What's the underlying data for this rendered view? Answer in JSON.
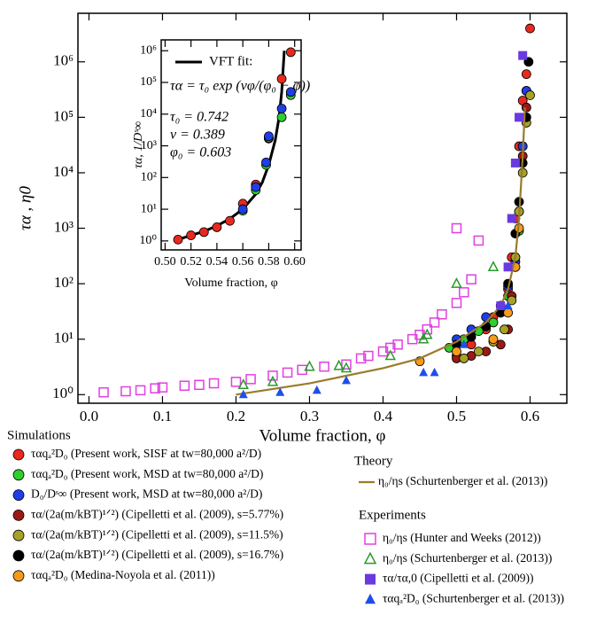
{
  "chart_data": [
    {
      "type": "scatter",
      "xlabel": "Volume fraction, φ",
      "ylabel": "τα , η0",
      "xlim": [
        -0.015,
        0.65
      ],
      "ylim": [
        0.7,
        7500000
      ],
      "log_y": true,
      "xticks": [
        {
          "value": 0,
          "label": "0.0"
        },
        0.1,
        0.2,
        0.3,
        0.4,
        0.5,
        0.6
      ],
      "yticks": [
        {
          "value": 1,
          "label": "10⁰"
        },
        {
          "value": 10,
          "label": "10¹"
        },
        {
          "value": 100,
          "label": "10²"
        },
        {
          "value": 1000,
          "label": "10³"
        },
        {
          "value": 10000,
          "label": "10⁴"
        },
        {
          "value": 100000,
          "label": "10⁵"
        },
        {
          "value": 1000000,
          "label": "10⁶"
        }
      ],
      "groups": [
        {
          "title": "Simulations",
          "series": [
            {
              "name": "ταqₐ²D₀ (Present work, SISF at tw=80,000 a²/D)",
              "color": "#e8291e",
              "marker": "circle",
              "x": [
                0.5,
                0.52,
                0.54,
                0.55,
                0.56,
                0.57,
                0.575,
                0.58,
                0.585,
                0.59,
                0.595,
                0.6
              ],
              "values": [
                5,
                8,
                15,
                25,
                40,
                80,
                300,
                1500,
                30000,
                200000,
                600000,
                4000000
              ]
            },
            {
              "name": "ταqₐ²D₀ (Present work, MSD at tw=80,000 a²/D)",
              "color": "#2fcf2f",
              "marker": "circle",
              "x": [
                0.49,
                0.51,
                0.53,
                0.55,
                0.56,
                0.57,
                0.58,
                0.585,
                0.59,
                0.595
              ],
              "values": [
                7,
                10,
                14,
                20,
                30,
                60,
                200,
                900,
                30000,
                300000
              ]
            },
            {
              "name": "D₀/Dˢ∞ (Present work, MSD at tw=80,000 a²/D)",
              "color": "#1f3ee8",
              "marker": "circle",
              "x": [
                0.5,
                0.52,
                0.54,
                0.56,
                0.57,
                0.58,
                0.59,
                0.595
              ],
              "values": [
                10,
                15,
                25,
                40,
                90,
                250,
                30000,
                300000
              ]
            },
            {
              "name": "τα/(2a(m/kBT)¹ᐟ²) (Cipelletti et al. (2009), s=5.77%)",
              "color": "#9b1a14",
              "marker": "circle",
              "x": [
                0.5,
                0.52,
                0.54,
                0.56,
                0.57,
                0.575,
                0.58,
                0.585,
                0.59,
                0.595
              ],
              "values": [
                4.5,
                5,
                6,
                8,
                15,
                60,
                300,
                2000,
                20000,
                150000
              ]
            },
            {
              "name": "τα/(2a(m/kBT)¹ᐟ²) (Cipelletti et al. (2009), s=11.5%)",
              "color": "#a7a128",
              "marker": "circle",
              "x": [
                0.51,
                0.53,
                0.55,
                0.565,
                0.575,
                0.58,
                0.585,
                0.59,
                0.595,
                0.6
              ],
              "values": [
                4.5,
                6,
                9,
                15,
                50,
                300,
                2000,
                10000,
                80000,
                250000
              ]
            },
            {
              "name": "τα/(2a(m/kBT)¹ᐟ²) (Cipelletti et al. (2009), s=16.7%)",
              "color": "#000000",
              "marker": "circle",
              "x": [
                0.5,
                0.52,
                0.54,
                0.56,
                0.57,
                0.58,
                0.585,
                0.59,
                0.595,
                0.598
              ],
              "values": [
                8,
                11,
                17,
                30,
                100,
                800,
                3000,
                15000,
                100000,
                1000000
              ]
            },
            {
              "name": "ταqₐ²D₀ (Medina-Noyola et al. (2011))",
              "color": "#f59a1a",
              "marker": "circle",
              "x": [
                0.45,
                0.5,
                0.55,
                0.57,
                0.58,
                0.585
              ],
              "values": [
                4,
                6,
                10,
                30,
                200,
                1000
              ]
            }
          ]
        },
        {
          "title": "Theory",
          "series": [
            {
              "name": "η₀/ηs (Schurtenberger et al. (2013))",
              "color": "#9a7b2a",
              "marker": "line",
              "x": [
                0.2,
                0.3,
                0.4,
                0.45,
                0.5,
                0.54,
                0.56,
                0.57,
                0.58,
                0.585,
                0.59,
                0.593
              ],
              "values": [
                1,
                1.6,
                3,
                4.5,
                9,
                20,
                40,
                80,
                300,
                1500,
                20000,
                150000
              ]
            }
          ]
        },
        {
          "title": "Experiments",
          "series": [
            {
              "name": "η₀/ηs (Hunter and Weeks (2012))",
              "color": "#e040e0",
              "marker": "square-open",
              "x": [
                0.02,
                0.05,
                0.07,
                0.09,
                0.1,
                0.13,
                0.15,
                0.17,
                0.2,
                0.22,
                0.25,
                0.27,
                0.29,
                0.32,
                0.35,
                0.37,
                0.38,
                0.4,
                0.41,
                0.42,
                0.44,
                0.45,
                0.46,
                0.47,
                0.48,
                0.5,
                0.51,
                0.52,
                0.5,
                0.53
              ],
              "values": [
                1.1,
                1.15,
                1.2,
                1.3,
                1.35,
                1.45,
                1.5,
                1.6,
                1.7,
                1.9,
                2.2,
                2.5,
                2.8,
                3.2,
                3.5,
                4.5,
                5,
                6,
                7,
                8,
                10,
                12,
                15,
                20,
                28,
                45,
                70,
                120,
                1000,
                600
              ]
            },
            {
              "name": "η₀/ηs (Schurtenberger et al. (2013))",
              "color": "#2a9a2a",
              "marker": "triangle-open",
              "x": [
                0.21,
                0.25,
                0.3,
                0.34,
                0.35,
                0.41,
                0.455,
                0.46,
                0.5,
                0.55
              ],
              "values": [
                1.5,
                1.7,
                3.2,
                3.3,
                3,
                5,
                10,
                12,
                100,
                200
              ]
            },
            {
              "name": "τα/τα,0 (Cipelletti et al. (2009))",
              "color": "#6a3ae0",
              "marker": "square",
              "x": [
                0.56,
                0.57,
                0.575,
                0.58,
                0.585,
                0.59
              ],
              "values": [
                40,
                200,
                1500,
                15000,
                100000,
                1300000
              ]
            },
            {
              "name": "ταqₐ²D₀ (Schurtenberger et al. (2013))",
              "color": "#1f4ee8",
              "marker": "triangle",
              "x": [
                0.21,
                0.26,
                0.31,
                0.35,
                0.455,
                0.47,
                0.51,
                0.57
              ],
              "values": [
                1,
                1.1,
                1.2,
                1.8,
                2.5,
                2.5,
                8,
                40
              ]
            }
          ]
        }
      ]
    },
    {
      "type": "scatter",
      "xlabel": "Volume fraction, φ",
      "ylabel": "τα, 1/Dˢ∞",
      "xlim": [
        0.497,
        0.605
      ],
      "ylim": [
        0.52,
        2200000
      ],
      "log_y": true,
      "xticks": [
        {
          "value": 0.5,
          "label": "0.50"
        },
        0.52,
        0.54,
        0.56,
        0.58,
        {
          "value": 0.6,
          "label": "0.60"
        }
      ],
      "yticks": [
        {
          "value": 1,
          "label": "10⁰"
        },
        {
          "value": 10,
          "label": "10¹"
        },
        {
          "value": 100,
          "label": "10²"
        },
        {
          "value": 1000,
          "label": "10³"
        },
        {
          "value": 10000,
          "label": "10⁴"
        },
        {
          "value": 100000,
          "label": "10⁵"
        },
        {
          "value": 1000000,
          "label": "10⁶"
        }
      ],
      "annotations": [
        "τα = τ₀ exp (νφ/(φ₀ − φ))",
        "τ₀ = 0.742",
        "ν = 0.389",
        "φ₀ = 0.603"
      ],
      "groups": [
        {
          "series": [
            {
              "name": "VFT fit:",
              "color": "#000000",
              "marker": "line",
              "x": [
                0.51,
                0.52,
                0.53,
                0.54,
                0.55,
                0.56,
                0.57,
                0.575,
                0.58,
                0.585,
                0.588,
                0.59,
                0.592
              ],
              "values": [
                1.1,
                1.5,
                2,
                3,
                5,
                10,
                30,
                70,
                250,
                1500,
                8000,
                50000,
                1000000
              ]
            },
            {
              "color": "#e8291e",
              "marker": "circle",
              "x": [
                0.51,
                0.52,
                0.53,
                0.54,
                0.55,
                0.56,
                0.57,
                0.58,
                0.59,
                0.597
              ],
              "values": [
                1.1,
                1.5,
                1.9,
                2.7,
                4.3,
                15,
                60,
                1700,
                130000,
                900000
              ]
            },
            {
              "color": "#2fcf2f",
              "marker": "circle",
              "x": [
                0.56,
                0.57,
                0.578,
                0.58,
                0.59,
                0.597
              ],
              "values": [
                9,
                40,
                250,
                1800,
                8000,
                40000
              ]
            },
            {
              "color": "#1f3ee8",
              "marker": "circle",
              "x": [
                0.56,
                0.57,
                0.578,
                0.58,
                0.59,
                0.597
              ],
              "values": [
                10,
                50,
                300,
                2000,
                15000,
                50000
              ]
            }
          ]
        }
      ]
    }
  ]
}
